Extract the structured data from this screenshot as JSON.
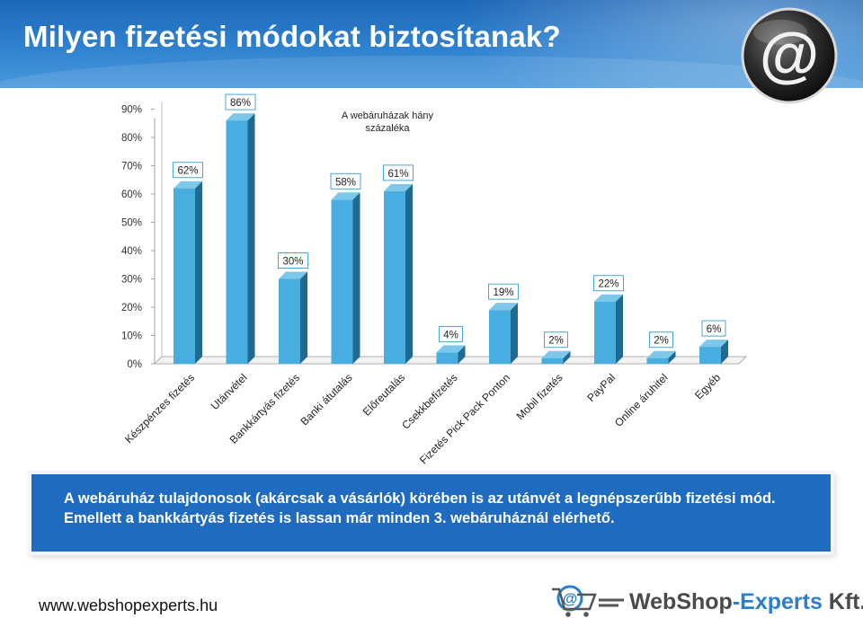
{
  "slide": {
    "title": "Milyen fizetési módokat biztosítanak?",
    "callout_text": "A webáruház tulajdonosok (akárcsak a vásárlók) körében is az utánvét a legnépszerűbb fizetési mód. Emellett a bankkártyás fizetés is lassan már minden 3. webáruháznál elérhető.",
    "footer_url": "www.webshopexperts.hu",
    "brand_part1": "WebShop",
    "brand_part2": "-Experts",
    "brand_part3": " Kft.",
    "header_icon": "at-sign-icon",
    "footer_icon": "shopping-cart-at-icon"
  },
  "chart_data": {
    "type": "bar",
    "legend_text": "A webáruházak hány százaléka",
    "legend_placement": "top-center",
    "categories": [
      "Készpénzes fizetés",
      "Utánvétel",
      "Bankkártyás fizetés",
      "Banki átutalás",
      "Előreutalás",
      "Csekkbefizetés",
      "Fizetés Pick Pack Ponton",
      "Mobil fizetés",
      "PayPal",
      "Online áruhitel",
      "Egyéb"
    ],
    "series": [
      {
        "values": [
          62,
          86,
          30,
          58,
          61,
          4,
          19,
          2,
          22,
          2,
          6
        ]
      }
    ],
    "value_labels": [
      "62%",
      "86%",
      "30%",
      "58%",
      "61%",
      "4%",
      "19%",
      "2%",
      "22%",
      "2%",
      "6%"
    ],
    "y_ticks": [
      0,
      10,
      20,
      30,
      40,
      50,
      60,
      70,
      80,
      90
    ],
    "y_tick_labels": [
      "0%",
      "10%",
      "20%",
      "30%",
      "40%",
      "50%",
      "60%",
      "70%",
      "80%",
      "90%"
    ],
    "ylim": [
      0,
      90
    ],
    "grid": false,
    "colors": {
      "bar_front": "#47aedf",
      "bar_side": "#1d6a94",
      "bar_top": "#7dc8ea",
      "label_border": "#4aa6d8"
    }
  }
}
